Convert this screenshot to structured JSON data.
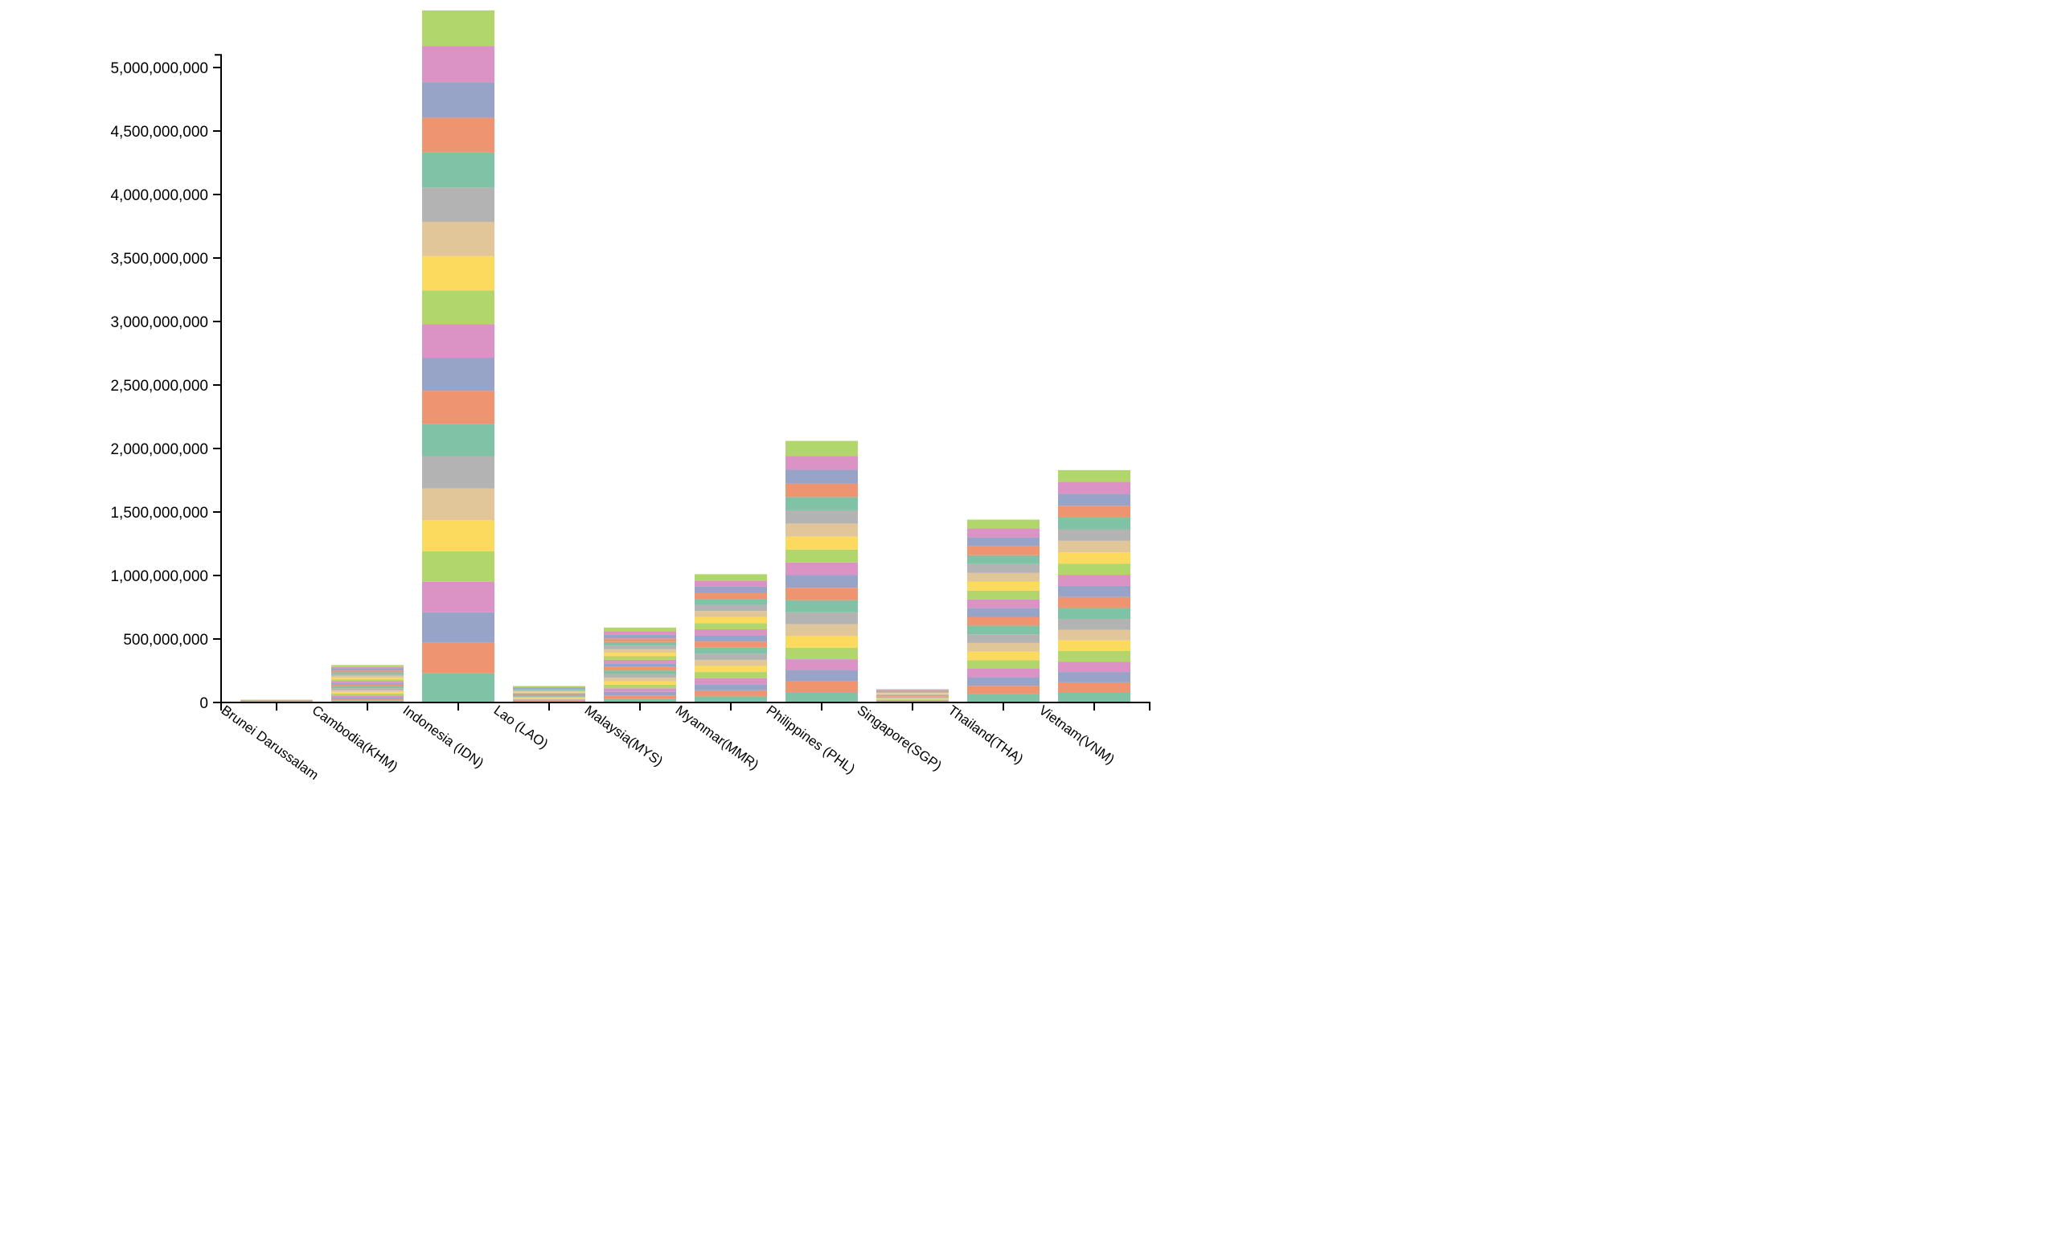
{
  "chart_data": {
    "type": "bar",
    "stacked": true,
    "title": "",
    "xlabel": "",
    "ylabel": "",
    "ylim": [
      0,
      5100000000
    ],
    "y_ticks": [
      0,
      500000000,
      1000000000,
      1500000000,
      2000000000,
      2500000000,
      3000000000,
      3500000000,
      4000000000,
      4500000000,
      5000000000
    ],
    "y_tick_labels": [
      "0",
      "500,000,000",
      "1,000,000,000",
      "1,500,000,000",
      "2,000,000,000",
      "2,500,000,000",
      "3,000,000,000",
      "3,500,000,000",
      "4,000,000,000",
      "4,500,000,000",
      "5,000,000,000"
    ],
    "categories": [
      "Brunei Darussalam",
      "Cambodia(KHM)",
      "Indonesia (IDN)",
      "Lao (LAO)",
      "Malaysia(MYS)",
      "Myanmar(MMR)",
      "Philippines (PHL)",
      "Singapore(SGP)",
      "Thailand(THA)",
      "Vietnam(VNM)"
    ],
    "segment_palette": [
      "#7fc2a5",
      "#ef9470",
      "#97a3c7",
      "#db92c5",
      "#b1d76c",
      "#fbda5e",
      "#e1c699",
      "#b3b3b3"
    ],
    "legend": "none",
    "grid": false,
    "series_note": "",
    "stacks": [
      {
        "category": "Brunei Darussalam",
        "segments": [
          1000000,
          1000000,
          1000000,
          1000000,
          1000000,
          1000000,
          1000000,
          1000000,
          1000000,
          1000000,
          1000000,
          1000000,
          1000000,
          1000000,
          1000000,
          1000000,
          1000000,
          1000000,
          1000000,
          1000000,
          1000000
        ]
      },
      {
        "category": "Cambodia(KHM)",
        "segments": [
          14000000,
          14000000,
          14000000,
          14000000,
          14000000,
          14000000,
          14000000,
          14000000,
          14000000,
          14000000,
          14000000,
          14000000,
          14000000,
          14000000,
          14000000,
          14000000,
          14000000,
          14000000,
          14000000,
          14000000,
          15000000
        ]
      },
      {
        "category": "Indonesia (IDN)",
        "segments": [
          230000000,
          240000000,
          240000000,
          240000000,
          240000000,
          245000000,
          250000000,
          255000000,
          255000000,
          260000000,
          260000000,
          265000000,
          265000000,
          270000000,
          270000000,
          270000000,
          275000000,
          275000000,
          280000000,
          285000000,
          280000000
        ]
      },
      {
        "category": "Lao (LAO)",
        "segments": [
          6000000,
          6000000,
          6000000,
          6000000,
          6000000,
          6000000,
          6000000,
          6000000,
          6000000,
          6000000,
          6000000,
          6000000,
          6000000,
          6000000,
          6000000,
          6000000,
          6000000,
          6000000,
          6000000,
          6000000,
          10000000
        ]
      },
      {
        "category": "Malaysia(MYS)",
        "segments": [
          28000000,
          28000000,
          28000000,
          28000000,
          28000000,
          28000000,
          28000000,
          28000000,
          28000000,
          28000000,
          28000000,
          28000000,
          28000000,
          28000000,
          28000000,
          28000000,
          28000000,
          28000000,
          28000000,
          28000000,
          30000000
        ]
      },
      {
        "category": "Myanmar(MMR)",
        "segments": [
          48000000,
          48000000,
          48000000,
          48000000,
          48000000,
          48000000,
          48000000,
          48000000,
          48000000,
          48000000,
          48000000,
          48000000,
          48000000,
          48000000,
          48000000,
          48000000,
          48000000,
          48000000,
          48000000,
          48000000,
          50000000
        ]
      },
      {
        "category": "Philippines (PHL)",
        "segments": [
          82000000,
          85000000,
          86000000,
          88000000,
          90000000,
          92000000,
          93000000,
          94000000,
          96000000,
          98000000,
          99000000,
          100000000,
          101000000,
          102000000,
          103000000,
          104000000,
          105000000,
          106000000,
          108000000,
          110000000,
          118000000
        ]
      },
      {
        "category": "Singapore(SGP)",
        "segments": [
          5000000,
          5000000,
          5000000,
          5000000,
          5000000,
          5000000,
          5000000,
          5000000,
          5000000,
          5000000,
          5000000,
          5000000,
          5000000,
          5000000,
          5000000,
          5000000,
          5000000,
          5000000,
          5000000,
          5000000,
          5000000
        ]
      },
      {
        "category": "Thailand(THA)",
        "segments": [
          66000000,
          66000000,
          67000000,
          67000000,
          67000000,
          68000000,
          68000000,
          68000000,
          68000000,
          69000000,
          69000000,
          69000000,
          69000000,
          69000000,
          70000000,
          70000000,
          70000000,
          70000000,
          70000000,
          70000000,
          70000000
        ]
      },
      {
        "category": "Vietnam(VNM)",
        "segments": [
          79000000,
          80000000,
          81000000,
          82000000,
          83000000,
          84000000,
          84000000,
          85000000,
          86000000,
          87000000,
          87000000,
          88000000,
          88000000,
          89000000,
          90000000,
          91000000,
          92000000,
          93000000,
          94000000,
          95000000,
          92000000
        ]
      }
    ]
  }
}
